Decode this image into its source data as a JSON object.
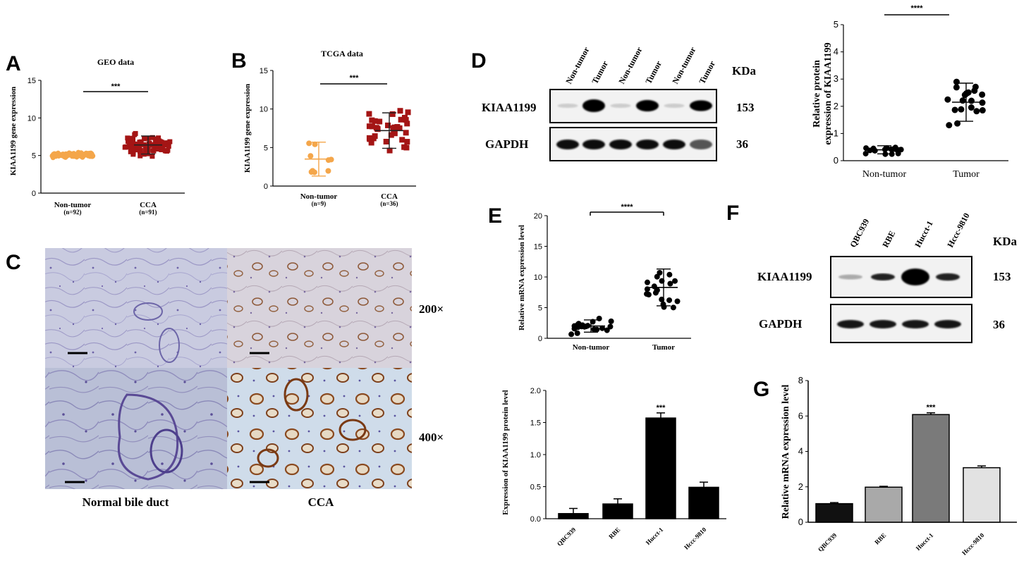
{
  "panels": {
    "A": {
      "letter": "A",
      "title": "GEO data",
      "ylabel": "KIAA1199 gene expression",
      "yticks": [
        "0",
        "5",
        "10",
        "15"
      ],
      "ylim": [
        0,
        15
      ],
      "groups": [
        {
          "label": "Non-tumor",
          "n": "(n=92)",
          "mean": 5.1,
          "sd": 0.3,
          "color": "#f4a64a"
        },
        {
          "label": "CCA",
          "n": "(n=91)",
          "mean": 6.4,
          "sd": 1.2,
          "color": "#a41515"
        }
      ],
      "significance": "***"
    },
    "B": {
      "letter": "B",
      "title": "TCGA data",
      "ylabel": "KIAA1199 gene expression",
      "yticks": [
        "0",
        "5",
        "10",
        "15"
      ],
      "ylim": [
        0,
        15
      ],
      "groups": [
        {
          "label": "Non-tumor",
          "n": "(n=9)",
          "mean": 3.5,
          "sd": 2.2,
          "color": "#f4a64a"
        },
        {
          "label": "CCA",
          "n": "(n=36)",
          "mean": 7.2,
          "sd": 2.3,
          "color": "#a41515"
        }
      ],
      "significance": "***"
    },
    "C": {
      "letter": "C",
      "mag_200": "200×",
      "mag_400": "400×",
      "label_normal": "Normal bile duct",
      "label_cca": "CCA"
    },
    "D_blot": {
      "letter": "D",
      "lanes": [
        "Non-tumor",
        "Tumor",
        "Non-tumor",
        "Tumor",
        "Non-tumor",
        "Tumor"
      ],
      "kda": "KDa",
      "protein1": "KIAA1199",
      "protein1_kda": "153",
      "protein2": "GAPDH",
      "protein2_kda": "36"
    },
    "D_scatter": {
      "ylabel_line1": "Relative protein",
      "ylabel_line2": "expression of KIAA1199",
      "yticks": [
        "0",
        "1",
        "2",
        "3",
        "4",
        "5"
      ],
      "ylim": [
        0,
        5
      ],
      "groups": [
        {
          "label": "Non-tumor",
          "mean": 0.4,
          "sd": 0.15
        },
        {
          "label": "Tumor",
          "mean": 2.15,
          "sd": 0.7
        }
      ],
      "significance": "****"
    },
    "E": {
      "letter": "E",
      "ylabel": "Relative mRNA expression level",
      "yticks": [
        "0",
        "5",
        "10",
        "15",
        "20"
      ],
      "ylim": [
        0,
        20
      ],
      "groups": [
        {
          "label": "Non-tumor",
          "mean": 2.0,
          "sd": 1.0
        },
        {
          "label": "Tumor",
          "mean": 8.3,
          "sd": 3.0
        }
      ],
      "significance": "****"
    },
    "F_blot": {
      "letter": "F",
      "lanes": [
        "QBC939",
        "RBE",
        "Hucct-1",
        "Hccc-9810"
      ],
      "kda": "KDa",
      "protein1": "KIAA1199",
      "protein1_kda": "153",
      "protein2": "GAPDH",
      "protein2_kda": "36"
    },
    "F_bar": {
      "ylabel": "Expression of KIAA1199 protein level",
      "yticks": [
        "0.0",
        "0.5",
        "1.0",
        "1.5",
        "2.0"
      ],
      "ylim": [
        0,
        2.0
      ],
      "significance": "***"
    },
    "G": {
      "letter": "G",
      "ylabel": "Relative mRNA expression level",
      "yticks": [
        "0",
        "2",
        "4",
        "6",
        "8"
      ],
      "ylim": [
        0,
        8
      ],
      "significance": "***"
    }
  },
  "chart_data": [
    {
      "type": "bar",
      "categories": [
        "QBC939",
        "RBE",
        "Hucct-1",
        "Hccc-9810"
      ],
      "values": [
        0.08,
        0.23,
        1.57,
        0.49
      ],
      "errors": [
        0.08,
        0.08,
        0.08,
        0.08
      ],
      "ylabel": "Expression of KIAA1199 protein level",
      "ylim": [
        0,
        2.0
      ],
      "color": "#000000"
    },
    {
      "type": "bar",
      "categories": [
        "QBC939",
        "RBE",
        "Hucct-1",
        "Hccc-9810"
      ],
      "values": [
        1.05,
        1.98,
        6.08,
        3.08
      ],
      "errors": [
        0.06,
        0.05,
        0.1,
        0.1
      ],
      "ylabel": "Relative mRNA expression level",
      "ylim": [
        0,
        8
      ],
      "colors": [
        "#111111",
        "#a9a9a9",
        "#7a7a7a",
        "#e2e2e2"
      ]
    }
  ]
}
